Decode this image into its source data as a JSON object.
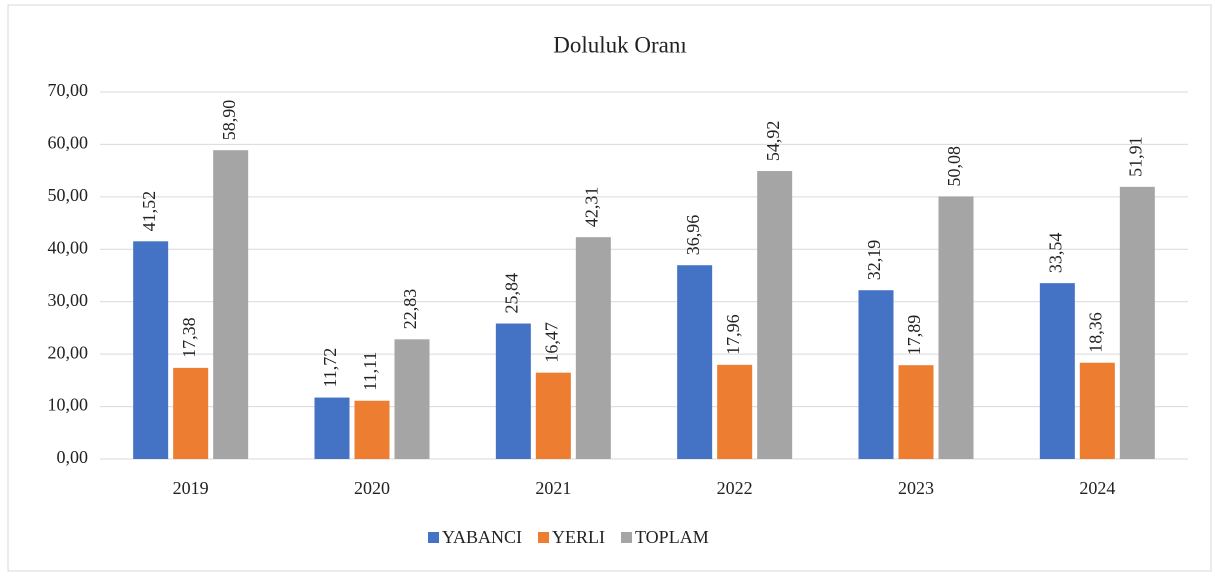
{
  "chart_data": {
    "type": "bar",
    "title": "Doluluk Oranı",
    "categories": [
      "2019",
      "2020",
      "2021",
      "2022",
      "2023",
      "2024"
    ],
    "series": [
      {
        "name": "YABANCI",
        "color": "#4472c4",
        "values": [
          41.52,
          11.72,
          25.84,
          36.96,
          32.19,
          33.54
        ],
        "value_labels": [
          "41,52",
          "11,72",
          "25,84",
          "36,96",
          "32,19",
          "33,54"
        ]
      },
      {
        "name": "YERLI",
        "color": "#ed7d31",
        "values": [
          17.38,
          11.11,
          16.47,
          17.96,
          17.89,
          18.36
        ],
        "value_labels": [
          "17,38",
          "11,11",
          "16,47",
          "17,96",
          "17,89",
          "18,36"
        ]
      },
      {
        "name": "TOPLAM",
        "color": "#a5a5a5",
        "values": [
          58.9,
          22.83,
          42.31,
          54.92,
          50.08,
          51.91
        ],
        "value_labels": [
          "58,90",
          "22,83",
          "42,31",
          "54,92",
          "50,08",
          "51,91"
        ]
      }
    ],
    "ylim": [
      0,
      70
    ],
    "yticks": [
      {
        "value": 0,
        "label": "0,00"
      },
      {
        "value": 10,
        "label": "10,00"
      },
      {
        "value": 20,
        "label": "20,00"
      },
      {
        "value": 30,
        "label": "30,00"
      },
      {
        "value": 40,
        "label": "40,00"
      },
      {
        "value": 50,
        "label": "50,00"
      },
      {
        "value": 60,
        "label": "60,00"
      },
      {
        "value": 70,
        "label": "70,00"
      }
    ],
    "grid": true,
    "legend": "bottom"
  }
}
